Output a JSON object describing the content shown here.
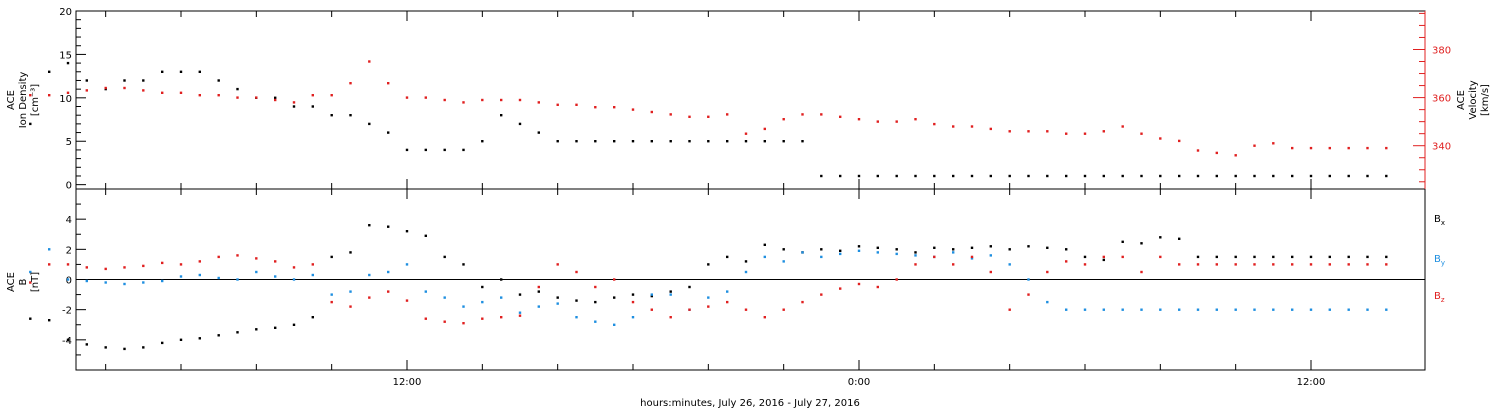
{
  "figure": {
    "xlabel": "hours:minutes, July 26, 2016 - July 27, 2016",
    "x_tick_labels": [
      "12:00",
      "0:00",
      "12:00"
    ]
  },
  "chart_data": [
    {
      "type": "scatter",
      "panel": "plasma",
      "ylabel_left": [
        "ACE",
        "Ion Density",
        "[cm⁻³]"
      ],
      "ylabel_right": [
        "ACE",
        "Velocity",
        "[km/s]"
      ],
      "x_unit": "hours since July 26, 2016 00:00",
      "x_range": [
        2,
        38
      ],
      "y_left": {
        "range": [
          -0.5,
          20
        ],
        "ticks": [
          0,
          5,
          10,
          15,
          20
        ]
      },
      "y_right": {
        "range": [
          322,
          396
        ],
        "ticks": [
          340,
          360,
          380
        ]
      },
      "series": [
        {
          "axis": "left",
          "color": "#000000",
          "x": [
            2.0,
            2.5,
            3.0,
            3.5,
            4.0,
            4.5,
            5.0,
            5.5,
            6.0,
            6.5,
            7.0,
            7.5,
            8.0,
            8.5,
            9.0,
            9.5,
            10.0,
            10.5,
            11.0,
            11.5,
            12.0,
            12.5,
            13.0,
            13.5,
            14.0,
            14.5,
            15.0,
            15.5,
            16.0,
            16.5,
            17.0,
            17.5,
            18.0,
            18.5,
            19.0,
            19.5,
            20.0,
            20.5,
            21.0,
            21.5,
            22.0,
            22.5,
            23.0,
            23.5,
            24.0,
            24.5,
            25.0,
            25.5,
            26.0,
            26.5,
            27.0,
            27.5,
            28.0,
            28.5,
            29.0,
            29.5,
            30.0,
            30.5,
            31.0,
            31.5,
            32.0,
            32.5,
            33.0,
            33.5,
            34.0,
            34.5,
            35.0,
            35.5,
            36.0,
            36.5,
            37.0,
            37.5,
            38.0
          ],
          "y": [
            7,
            13,
            14,
            12,
            11,
            12,
            12,
            13,
            13,
            13,
            12,
            11,
            10,
            10,
            9,
            9,
            8,
            8,
            7,
            6,
            4,
            4,
            4,
            4,
            5,
            8,
            7,
            6,
            5,
            5,
            5,
            5,
            5,
            5,
            5,
            5,
            5,
            5,
            5,
            5,
            5,
            5,
            1,
            1,
            1,
            1,
            1,
            1,
            1,
            1,
            1,
            1,
            1,
            1,
            1,
            1,
            1,
            1,
            1,
            1,
            1,
            1,
            1,
            1,
            1,
            1,
            1,
            1,
            1,
            1,
            1,
            1,
            1
          ]
        },
        {
          "axis": "right",
          "color": "#e02020",
          "x": [
            2.0,
            2.5,
            3.0,
            3.5,
            4.0,
            4.5,
            5.0,
            5.5,
            6.0,
            6.5,
            7.0,
            7.5,
            8.0,
            8.5,
            9.0,
            9.5,
            10.0,
            10.5,
            11.0,
            11.5,
            12.0,
            12.5,
            13.0,
            13.5,
            14.0,
            14.5,
            15.0,
            15.5,
            16.0,
            16.5,
            17.0,
            17.5,
            18.0,
            18.5,
            19.0,
            19.5,
            20.0,
            20.5,
            21.0,
            21.5,
            22.0,
            22.5,
            23.0,
            23.5,
            24.0,
            24.5,
            25.0,
            25.5,
            26.0,
            26.5,
            27.0,
            27.5,
            28.0,
            28.5,
            29.0,
            29.5,
            30.0,
            30.5,
            31.0,
            31.5,
            32.0,
            32.5,
            33.0,
            33.5,
            34.0,
            34.5,
            35.0,
            35.5,
            36.0,
            36.5,
            37.0,
            37.5,
            38.0
          ],
          "y": [
            361,
            361,
            362,
            363,
            364,
            364,
            363,
            362,
            362,
            361,
            361,
            360,
            360,
            359,
            358,
            361,
            361,
            366,
            375,
            366,
            360,
            360,
            359,
            358,
            359,
            359,
            359,
            358,
            357,
            357,
            356,
            356,
            355,
            354,
            353,
            352,
            352,
            353,
            345,
            347,
            351,
            353,
            353,
            352,
            351,
            350,
            350,
            351,
            349,
            348,
            348,
            347,
            346,
            346,
            346,
            345,
            345,
            346,
            348,
            345,
            343,
            342,
            338,
            337,
            336,
            340,
            341,
            339,
            339,
            339,
            339,
            339,
            339
          ]
        }
      ]
    },
    {
      "type": "scatter",
      "panel": "magnetic field",
      "ylabel_left": [
        "ACE",
        "B",
        "[nT]"
      ],
      "x_unit": "hours since July 26, 2016 00:00",
      "x_range": [
        2,
        38
      ],
      "y_left": {
        "range": [
          -6,
          6
        ],
        "ticks": [
          -4,
          -2,
          0,
          2,
          4
        ]
      },
      "reference_line": 0,
      "legend_placement": "right",
      "series": [
        {
          "name_base": "B",
          "name_sub": "x",
          "color": "#000000",
          "x": [
            2.0,
            2.5,
            3.0,
            3.5,
            4.0,
            4.5,
            5.0,
            5.5,
            6.0,
            6.5,
            7.0,
            7.5,
            8.0,
            8.5,
            9.0,
            9.5,
            10.0,
            10.5,
            11.0,
            11.5,
            12.0,
            12.5,
            13.0,
            13.5,
            14.0,
            14.5,
            15.0,
            15.5,
            16.0,
            16.5,
            17.0,
            17.5,
            18.0,
            18.5,
            19.0,
            19.5,
            20.0,
            20.5,
            21.0,
            21.5,
            22.0,
            22.5,
            23.0,
            23.5,
            24.0,
            24.5,
            25.0,
            25.5,
            26.0,
            26.5,
            27.0,
            27.5,
            28.0,
            28.5,
            29.0,
            29.5,
            30.0,
            30.5,
            31.0,
            31.5,
            32.0,
            32.5,
            33.0,
            33.5,
            34.0,
            34.5,
            35.0,
            35.5,
            36.0,
            36.5,
            37.0,
            37.5,
            38.0
          ],
          "y": [
            -2.6,
            -2.7,
            -4.0,
            -4.3,
            -4.5,
            -4.6,
            -4.5,
            -4.2,
            -4.0,
            -3.9,
            -3.7,
            -3.5,
            -3.3,
            -3.2,
            -3.0,
            -2.5,
            1.5,
            1.8,
            3.6,
            3.5,
            3.2,
            2.9,
            1.5,
            1.0,
            -0.5,
            0,
            -1.0,
            -0.8,
            -1.2,
            -1.4,
            -1.5,
            -1.2,
            -1.0,
            -1.1,
            -0.8,
            -0.5,
            1.0,
            1.5,
            1.2,
            2.3,
            2.0,
            1.8,
            2.0,
            1.9,
            2.2,
            2.1,
            2.0,
            1.8,
            2.1,
            2.0,
            2.1,
            2.2,
            2.0,
            2.2,
            2.1,
            2.0,
            1.5,
            1.3,
            2.5,
            2.4,
            2.8,
            2.7,
            1.5,
            1.5,
            1.5,
            1.5,
            1.5,
            1.5,
            1.5,
            1.5,
            1.5,
            1.5,
            1.5
          ]
        },
        {
          "name_base": "B",
          "name_sub": "y",
          "color": "#1f8fe0",
          "x": [
            2.0,
            2.5,
            3.0,
            3.5,
            4.0,
            4.5,
            5.0,
            5.5,
            6.0,
            6.5,
            7.0,
            7.5,
            8.0,
            8.5,
            9.0,
            9.5,
            10.0,
            10.5,
            11.0,
            11.5,
            12.0,
            12.5,
            13.0,
            13.5,
            14.0,
            14.5,
            15.0,
            15.5,
            16.0,
            16.5,
            17.0,
            17.5,
            18.0,
            18.5,
            19.0,
            19.5,
            20.0,
            20.5,
            21.0,
            21.5,
            22.0,
            22.5,
            23.0,
            23.5,
            24.0,
            24.5,
            25.0,
            25.5,
            26.0,
            26.5,
            27.0,
            27.5,
            28.0,
            28.5,
            29.0,
            29.5,
            30.0,
            30.5,
            31.0,
            31.5,
            32.0,
            32.5,
            33.0,
            33.5,
            34.0,
            34.5,
            35.0,
            35.5,
            36.0,
            36.5,
            37.0,
            37.5,
            38.0
          ],
          "y": [
            0.5,
            2.0,
            0.0,
            -0.1,
            -0.2,
            -0.3,
            -0.2,
            -0.1,
            0.2,
            0.3,
            0.1,
            0.0,
            0.5,
            0.2,
            0.0,
            0.3,
            -1.0,
            -0.8,
            0.3,
            0.5,
            1.0,
            -0.8,
            -1.2,
            -1.8,
            -1.5,
            -1.2,
            -2.2,
            -1.8,
            -1.6,
            -2.5,
            -2.8,
            -3.0,
            -2.5,
            -1.0,
            -1.0,
            -2.0,
            -1.2,
            -0.8,
            0.5,
            1.5,
            1.2,
            1.8,
            1.5,
            1.7,
            1.9,
            1.8,
            1.7,
            1.6,
            1.5,
            1.8,
            1.4,
            1.6,
            1.0,
            0.0,
            -1.5,
            -2.0,
            -2.0,
            -2.0,
            -2.0,
            -2.0,
            -2.0,
            -2.0,
            -2.0,
            -2.0,
            -2.0,
            -2.0,
            -2.0,
            -2.0,
            -2.0,
            -2.0,
            -2.0,
            -2.0,
            -2.0
          ]
        },
        {
          "name_base": "B",
          "name_sub": "z",
          "color": "#e02020",
          "x": [
            2.0,
            2.5,
            3.0,
            3.5,
            4.0,
            4.5,
            5.0,
            5.5,
            6.0,
            6.5,
            7.0,
            7.5,
            8.0,
            8.5,
            9.0,
            9.5,
            10.0,
            10.5,
            11.0,
            11.5,
            12.0,
            12.5,
            13.0,
            13.5,
            14.0,
            14.5,
            15.0,
            15.5,
            16.0,
            16.5,
            17.0,
            17.5,
            18.0,
            18.5,
            19.0,
            19.5,
            20.0,
            20.5,
            21.0,
            21.5,
            22.0,
            22.5,
            23.0,
            23.5,
            24.0,
            24.5,
            25.0,
            25.5,
            26.0,
            26.5,
            27.0,
            27.5,
            28.0,
            28.5,
            29.0,
            29.5,
            30.0,
            30.5,
            31.0,
            31.5,
            32.0,
            32.5,
            33.0,
            33.5,
            34.0,
            34.5,
            35.0,
            35.5,
            36.0,
            36.5,
            37.0,
            37.5,
            38.0
          ],
          "y": [
            -0.2,
            1.0,
            1.0,
            0.8,
            0.7,
            0.8,
            0.9,
            1.1,
            1.0,
            1.2,
            1.5,
            1.6,
            1.4,
            1.2,
            0.8,
            1.0,
            -1.5,
            -1.8,
            -1.2,
            -0.8,
            -1.4,
            -2.6,
            -2.8,
            -2.9,
            -2.6,
            -2.5,
            -2.4,
            -0.5,
            1.0,
            0.5,
            -0.5,
            0.0,
            -1.5,
            -2.0,
            -2.5,
            -2.0,
            -1.8,
            -1.5,
            -2.0,
            -2.5,
            -2.0,
            -1.5,
            -1.0,
            -0.6,
            -0.3,
            -0.5,
            0.0,
            1.0,
            1.5,
            1.0,
            1.5,
            0.5,
            -2.0,
            -1.0,
            0.5,
            1.2,
            1.0,
            1.5,
            1.5,
            0.5,
            1.5,
            1.0,
            1.0,
            1.0,
            1.0,
            1.0,
            1.0,
            1.0,
            1.0,
            1.0,
            1.0,
            1.0,
            1.0
          ]
        }
      ]
    }
  ]
}
